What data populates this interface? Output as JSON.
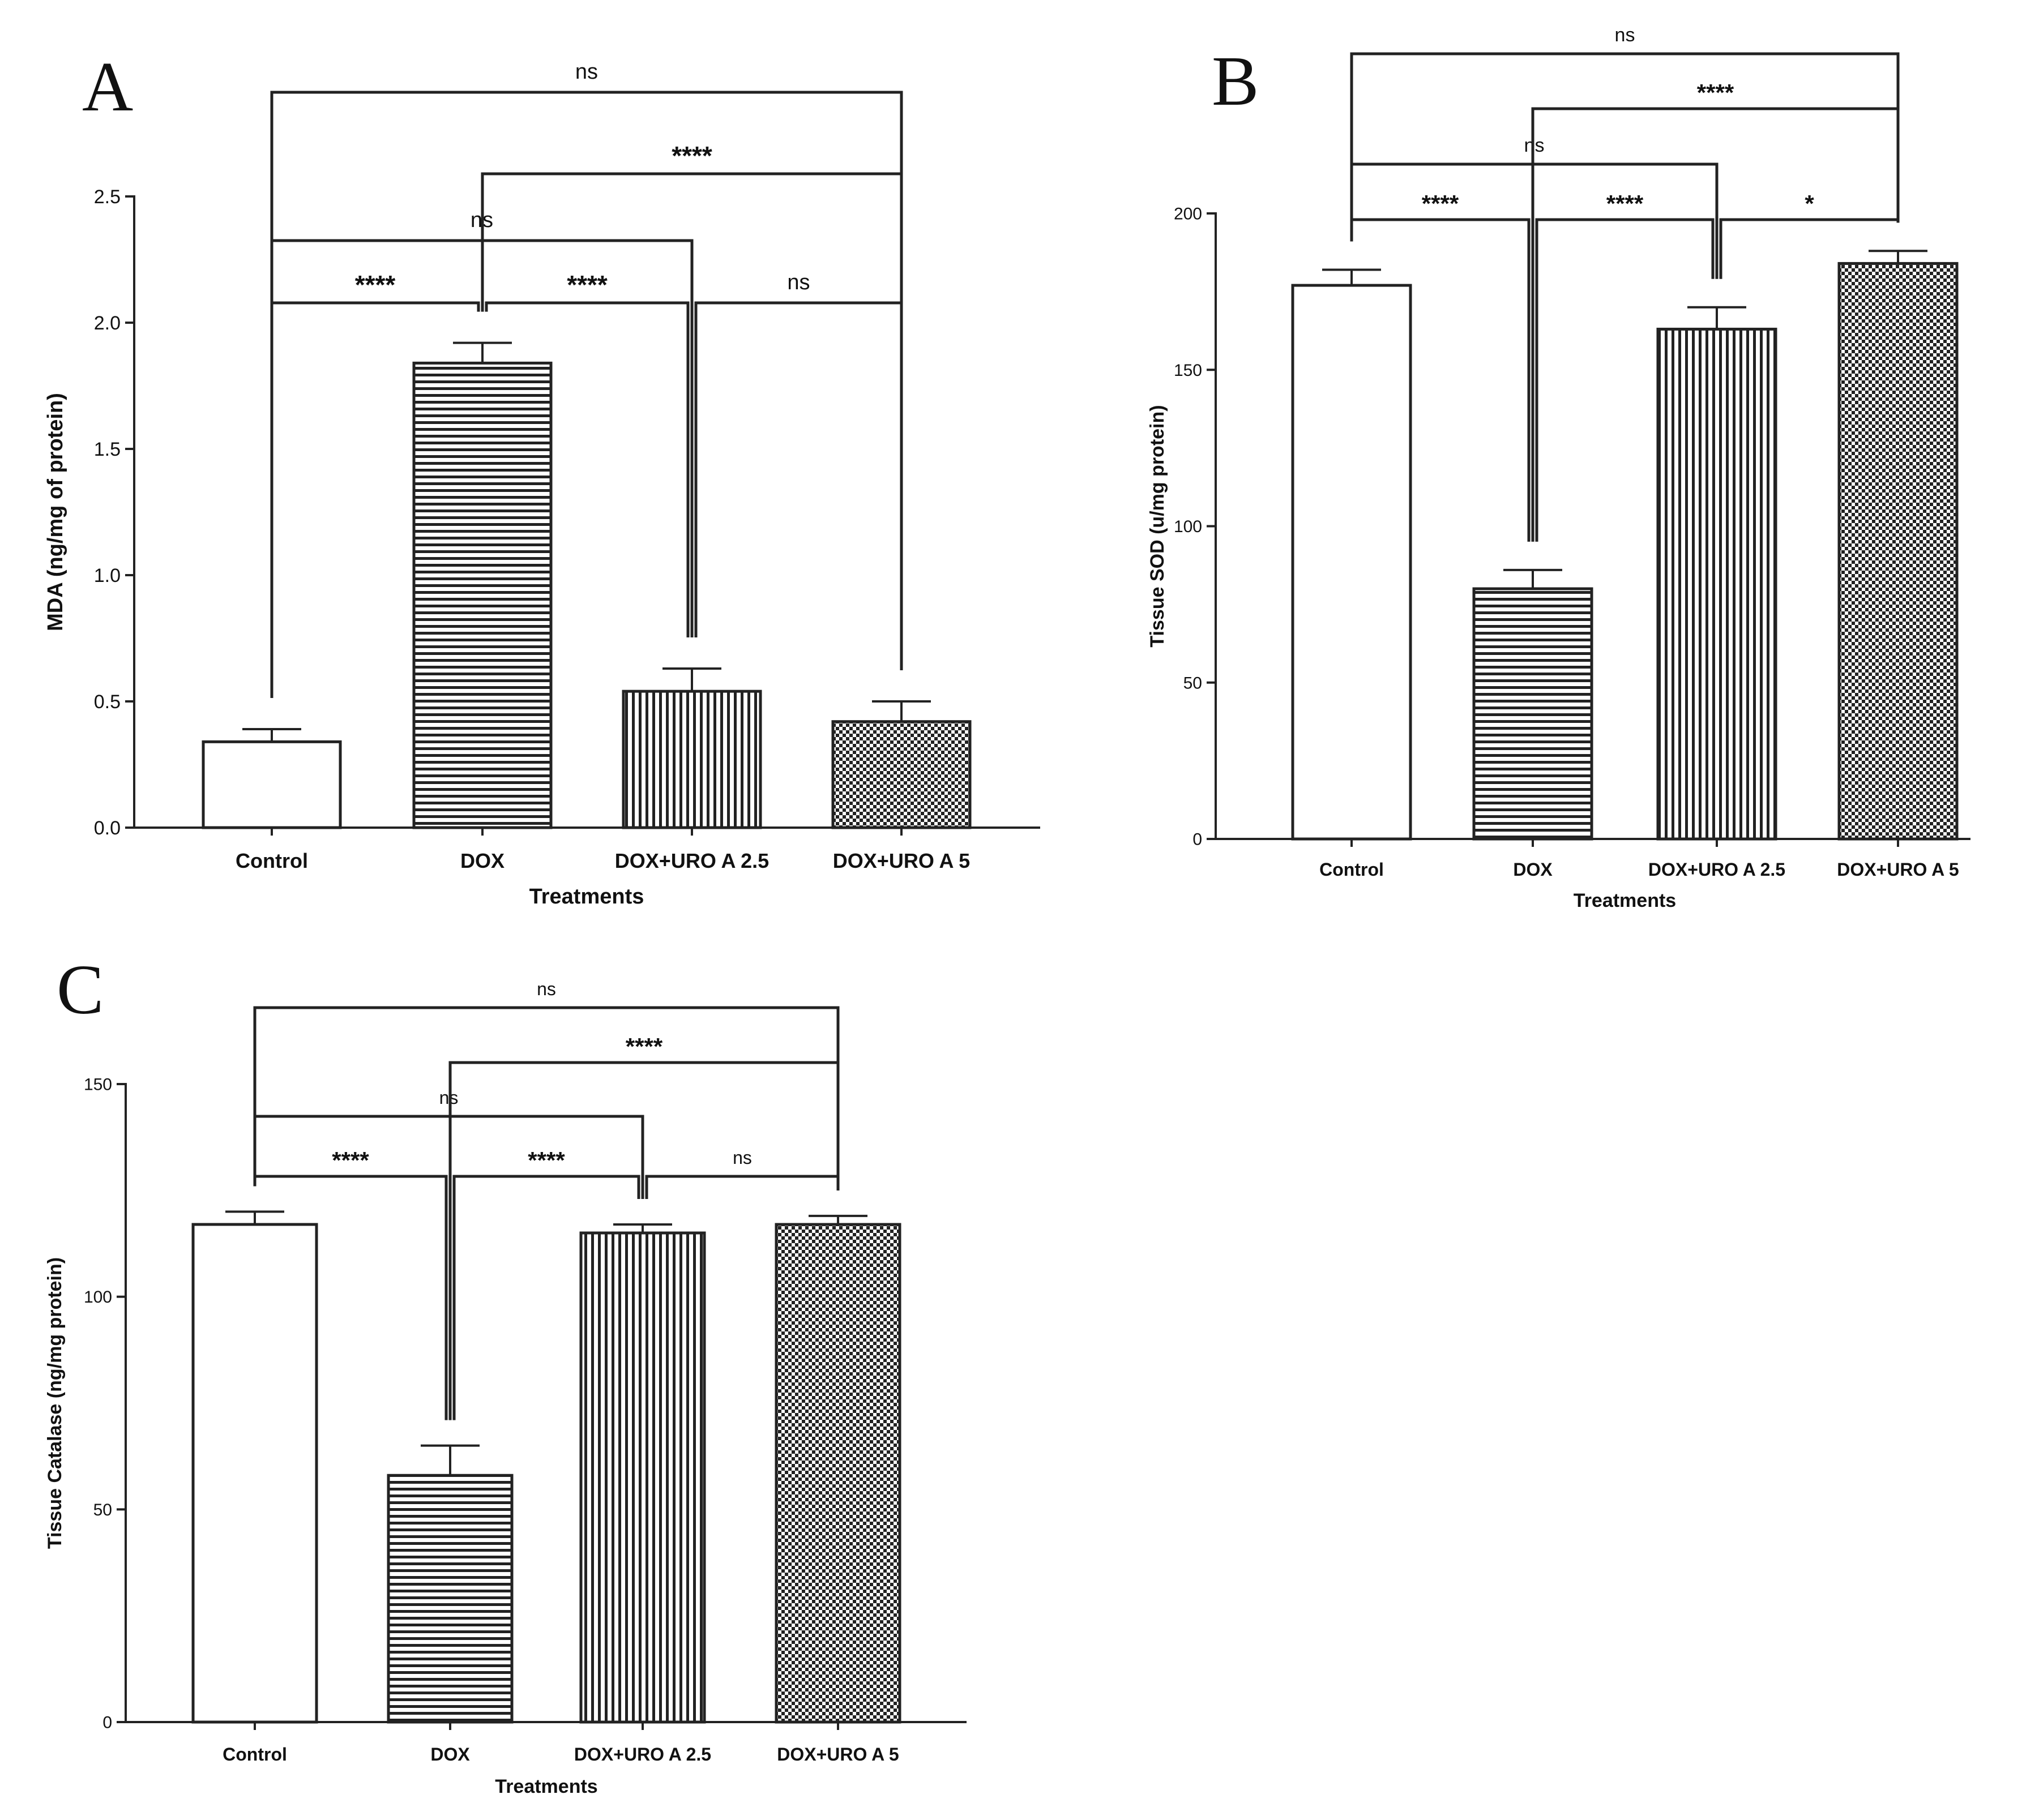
{
  "figure": "Three-panel bar chart figure",
  "chart_data": [
    {
      "panel": "A",
      "type": "bar",
      "categories": [
        "Control",
        "DOX",
        "DOX+URO A 2.5",
        "DOX+URO A 5"
      ],
      "values": [
        0.34,
        1.84,
        0.54,
        0.42
      ],
      "errors": [
        0.05,
        0.08,
        0.09,
        0.08
      ],
      "patterns": [
        "white",
        "hstripes",
        "vstripes",
        "checker"
      ],
      "xlabel": "Treatments",
      "ylabel": "MDA (ng/mg of protein)",
      "ylim": [
        0,
        2.5
      ],
      "yticks": [
        0.0,
        0.5,
        1.0,
        1.5,
        2.0,
        2.5
      ],
      "ytick_labels": [
        "0.0",
        "0.5",
        "1.0",
        "1.5",
        "2.0",
        "2.5"
      ],
      "comparisons": [
        {
          "from": 0,
          "to": 1,
          "label": "****"
        },
        {
          "from": 1,
          "to": 2,
          "label": "****"
        },
        {
          "from": 2,
          "to": 3,
          "label": "ns"
        },
        {
          "from": 0,
          "to": 2,
          "label": "ns"
        },
        {
          "from": 1,
          "to": 3,
          "label": "****"
        },
        {
          "from": 0,
          "to": 3,
          "label": "ns"
        }
      ]
    },
    {
      "panel": "B",
      "type": "bar",
      "categories": [
        "Control",
        "DOX",
        "DOX+URO A 2.5",
        "DOX+URO A 5"
      ],
      "values": [
        177,
        80,
        163,
        184
      ],
      "errors": [
        5,
        6,
        7,
        4
      ],
      "patterns": [
        "white",
        "hstripes",
        "vstripes",
        "checker"
      ],
      "xlabel": "Treatments",
      "ylabel": "Tissue SOD (u/mg protein)",
      "ylim": [
        0,
        200
      ],
      "yticks": [
        0,
        50,
        100,
        150,
        200
      ],
      "ytick_labels": [
        "0",
        "50",
        "100",
        "150",
        "200"
      ],
      "comparisons": [
        {
          "from": 0,
          "to": 1,
          "label": "****"
        },
        {
          "from": 1,
          "to": 2,
          "label": "****"
        },
        {
          "from": 2,
          "to": 3,
          "label": "*"
        },
        {
          "from": 0,
          "to": 2,
          "label": "ns"
        },
        {
          "from": 1,
          "to": 3,
          "label": "****"
        },
        {
          "from": 0,
          "to": 3,
          "label": "ns"
        }
      ]
    },
    {
      "panel": "C",
      "type": "bar",
      "categories": [
        "Control",
        "DOX",
        "DOX+URO A 2.5",
        "DOX+URO A 5"
      ],
      "values": [
        117,
        58,
        115,
        117
      ],
      "errors": [
        3,
        7,
        2,
        2
      ],
      "patterns": [
        "white",
        "hstripes",
        "vstripes",
        "checker"
      ],
      "xlabel": "Treatments",
      "ylabel": "Tissue Catalase (ng/mg protein)",
      "ylim": [
        0,
        150
      ],
      "yticks": [
        0,
        50,
        100,
        150
      ],
      "ytick_labels": [
        "0",
        "50",
        "100",
        "150"
      ],
      "comparisons": [
        {
          "from": 0,
          "to": 1,
          "label": "****"
        },
        {
          "from": 1,
          "to": 2,
          "label": "****"
        },
        {
          "from": 2,
          "to": 3,
          "label": "ns"
        },
        {
          "from": 0,
          "to": 2,
          "label": "ns"
        },
        {
          "from": 1,
          "to": 3,
          "label": "****"
        },
        {
          "from": 0,
          "to": 3,
          "label": "ns"
        }
      ]
    }
  ]
}
